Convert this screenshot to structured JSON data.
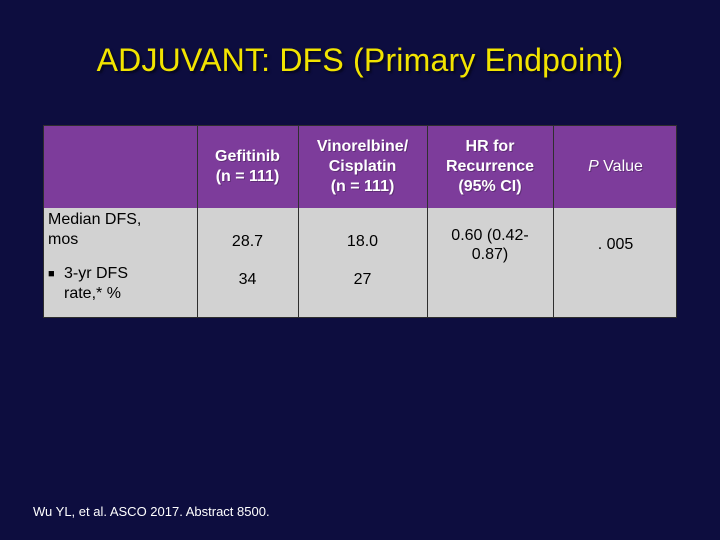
{
  "title": "ADJUVANT: DFS (Primary Endpoint)",
  "table": {
    "headers": [
      "",
      "Gefitinib\n(n = 111)",
      "Vinorelbine/\nCisplatin\n(n = 111)",
      "HR for\nRecurrence\n(95% CI)",
      "P Value"
    ],
    "rows": [
      {
        "label": "Median DFS,\nmos",
        "bullet": "",
        "gefitinib": "28.7",
        "vinorelbine_cisplatin": "18.0",
        "hr": "0.60 (0.42-\n0.87)",
        "p_value": ". 005"
      },
      {
        "label": "3-yr DFS\nrate,* %",
        "bullet": "■",
        "gefitinib": "34",
        "vinorelbine_cisplatin": "27",
        "hr": "",
        "p_value": ""
      }
    ],
    "pvalue_italic_part": "P",
    "pvalue_rest": " Value"
  },
  "footer": "Wu YL, et al. ASCO 2017. Abstract 8500.",
  "colors": {
    "background": "#0d0d3f",
    "title": "#f2e400",
    "header": "#7d3c9b",
    "table_body": "#d2d2d2"
  }
}
